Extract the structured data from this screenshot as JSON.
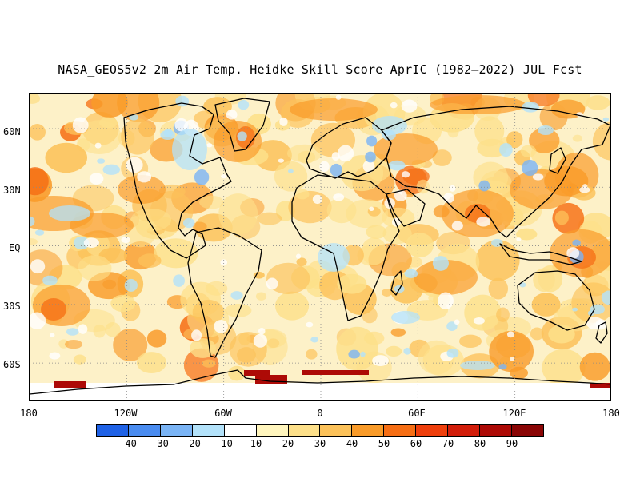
{
  "title": "NASA_GEOS5v2 2m Air Temp. Heidke Skill Score AprIC (1982–2022) JUL Fcst",
  "map": {
    "lat_labels": [
      "60N",
      "30N",
      "EQ",
      "30S",
      "60S"
    ],
    "lon_labels": [
      "180",
      "120W",
      "60W",
      "0",
      "60E",
      "120E",
      "180"
    ],
    "lon_range": [
      -180,
      180
    ],
    "lat_range": [
      -80,
      78
    ],
    "gridlines": "dotted"
  },
  "colorbar": {
    "labels": [
      "-40",
      "-30",
      "-20",
      "-10",
      "10",
      "20",
      "30",
      "40",
      "50",
      "60",
      "70",
      "80",
      "90"
    ],
    "colors": [
      "#1f62e6",
      "#4a8cf0",
      "#7ab4f5",
      "#b3e2fa",
      "#ffffff",
      "#fff5bd",
      "#fde08a",
      "#fcc25a",
      "#f99b29",
      "#f66e14",
      "#ef3f0c",
      "#d21d0a",
      "#ad0a06",
      "#8a0505"
    ]
  },
  "field_colors": {
    "light_yellow": "#fdf1c8",
    "yellow": "#fde08a",
    "orange": "#fcc25a",
    "deep_orange": "#f99b29",
    "red_orange": "#f66e14",
    "light_blue": "#b3e2fa",
    "blue": "#7ab4f5",
    "white": "#ffffff",
    "dark_red": "#ad0a06"
  }
}
